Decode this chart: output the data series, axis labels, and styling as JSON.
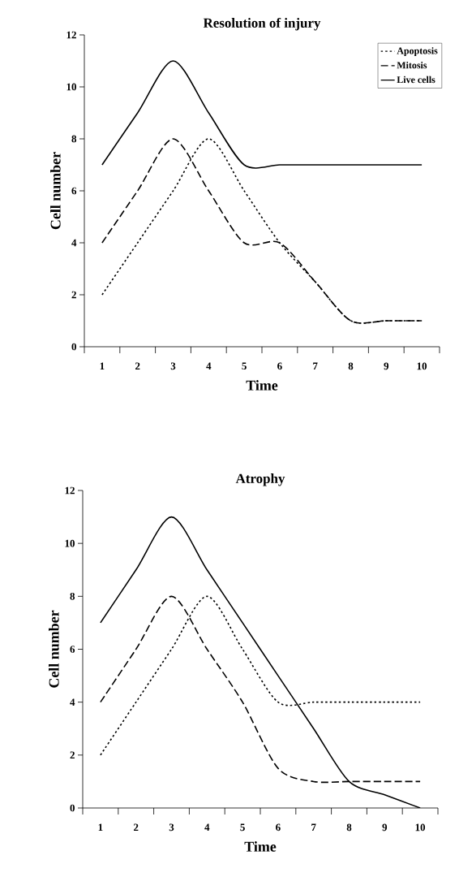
{
  "chart_data": [
    {
      "type": "line",
      "title": "Resolution of injury",
      "xlabel": "Time",
      "ylabel": "Cell number",
      "categories": [
        "1",
        "2",
        "3",
        "4",
        "5",
        "6",
        "7",
        "8",
        "9",
        "10"
      ],
      "ylim": [
        0,
        12
      ],
      "yticks": [
        0,
        2,
        4,
        6,
        8,
        10,
        12
      ],
      "legend": "top right",
      "series": [
        {
          "name": "Apoptosis",
          "color": "#000000",
          "line_style": "dotted",
          "values": [
            2,
            4,
            6,
            8,
            6,
            4,
            2.5,
            1,
            1,
            1
          ]
        },
        {
          "name": "Mitosis",
          "color": "#000000",
          "line_style": "dashed",
          "values": [
            4,
            6,
            8,
            6,
            4,
            4,
            2.5,
            1,
            1,
            1
          ]
        },
        {
          "name": "Live cells",
          "color": "#000000",
          "line_style": "solid",
          "values": [
            7,
            9,
            11,
            9,
            7,
            7,
            7,
            7,
            7,
            7
          ]
        }
      ]
    },
    {
      "type": "line",
      "title": "Atrophy",
      "xlabel": "Time",
      "ylabel": "Cell number",
      "categories": [
        "1",
        "2",
        "3",
        "4",
        "5",
        "6",
        "7",
        "8",
        "9",
        "10"
      ],
      "ylim": [
        0,
        12
      ],
      "yticks": [
        0,
        2,
        4,
        6,
        8,
        10,
        12
      ],
      "series": [
        {
          "color": "#000000",
          "line_style": "dotted",
          "values": [
            2,
            4,
            6,
            8,
            6,
            4,
            4,
            4,
            4,
            4
          ]
        },
        {
          "color": "#000000",
          "line_style": "dashed",
          "values": [
            4,
            6,
            8,
            6,
            4,
            1.5,
            1,
            1,
            1,
            1
          ]
        },
        {
          "color": "#000000",
          "line_style": "solid",
          "values": [
            7,
            9,
            11,
            9,
            7,
            5,
            3,
            1,
            0.5,
            0
          ]
        }
      ]
    }
  ]
}
